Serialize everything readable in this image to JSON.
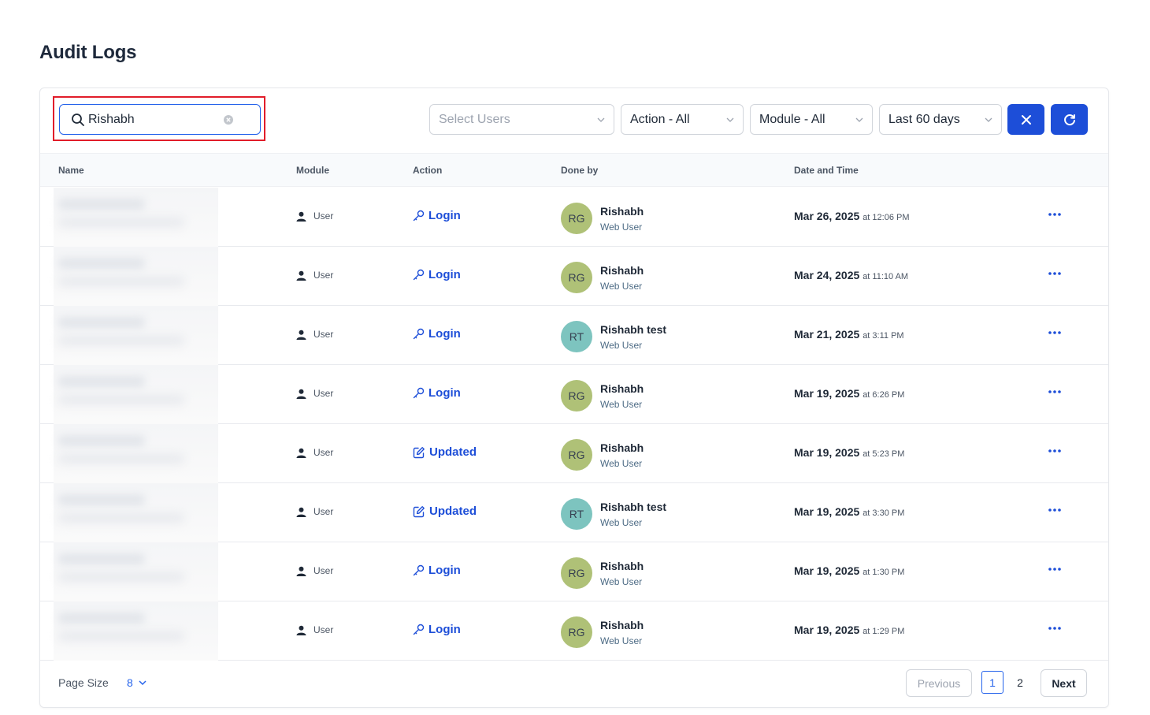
{
  "page": {
    "title": "Audit Logs"
  },
  "toolbar": {
    "search_value": "Rishabh",
    "users_placeholder": "Select Users",
    "action_filter": "Action - All",
    "module_filter": "Module - All",
    "date_filter": "Last 60 days"
  },
  "columns": {
    "name": "Name",
    "module": "Module",
    "action": "Action",
    "done_by": "Done by",
    "date_time": "Date and Time"
  },
  "rows": [
    {
      "module": "User",
      "action": "Login",
      "action_icon": "key-icon",
      "initials": "RG",
      "avatar_color": "#afc177",
      "user": "Rishabh",
      "role": "Web User",
      "date": "Mar 26, 2025",
      "time": "at 12:06 PM"
    },
    {
      "module": "User",
      "action": "Login",
      "action_icon": "key-icon",
      "initials": "RG",
      "avatar_color": "#afc177",
      "user": "Rishabh",
      "role": "Web User",
      "date": "Mar 24, 2025",
      "time": "at 11:10 AM"
    },
    {
      "module": "User",
      "action": "Login",
      "action_icon": "key-icon",
      "initials": "RT",
      "avatar_color": "#7dc4bf",
      "user": "Rishabh test",
      "role": "Web User",
      "date": "Mar 21, 2025",
      "time": "at 3:11 PM"
    },
    {
      "module": "User",
      "action": "Login",
      "action_icon": "key-icon",
      "initials": "RG",
      "avatar_color": "#afc177",
      "user": "Rishabh",
      "role": "Web User",
      "date": "Mar 19, 2025",
      "time": "at 6:26 PM"
    },
    {
      "module": "User",
      "action": "Updated",
      "action_icon": "edit-icon",
      "initials": "RG",
      "avatar_color": "#afc177",
      "user": "Rishabh",
      "role": "Web User",
      "date": "Mar 19, 2025",
      "time": "at 5:23 PM"
    },
    {
      "module": "User",
      "action": "Updated",
      "action_icon": "edit-icon",
      "initials": "RT",
      "avatar_color": "#7dc4bf",
      "user": "Rishabh test",
      "role": "Web User",
      "date": "Mar 19, 2025",
      "time": "at 3:30 PM"
    },
    {
      "module": "User",
      "action": "Login",
      "action_icon": "key-icon",
      "initials": "RG",
      "avatar_color": "#afc177",
      "user": "Rishabh",
      "role": "Web User",
      "date": "Mar 19, 2025",
      "time": "at 1:30 PM"
    },
    {
      "module": "User",
      "action": "Login",
      "action_icon": "key-icon",
      "initials": "RG",
      "avatar_color": "#afc177",
      "user": "Rishabh",
      "role": "Web User",
      "date": "Mar 19, 2025",
      "time": "at 1:29 PM"
    }
  ],
  "footer": {
    "page_size_label": "Page Size",
    "page_size_value": "8",
    "previous_label": "Previous",
    "pages": [
      "1",
      "2"
    ],
    "current_page": "1",
    "next_label": "Next"
  },
  "colors": {
    "accent": "#1d4ed8",
    "highlight": "#e11d2a"
  }
}
